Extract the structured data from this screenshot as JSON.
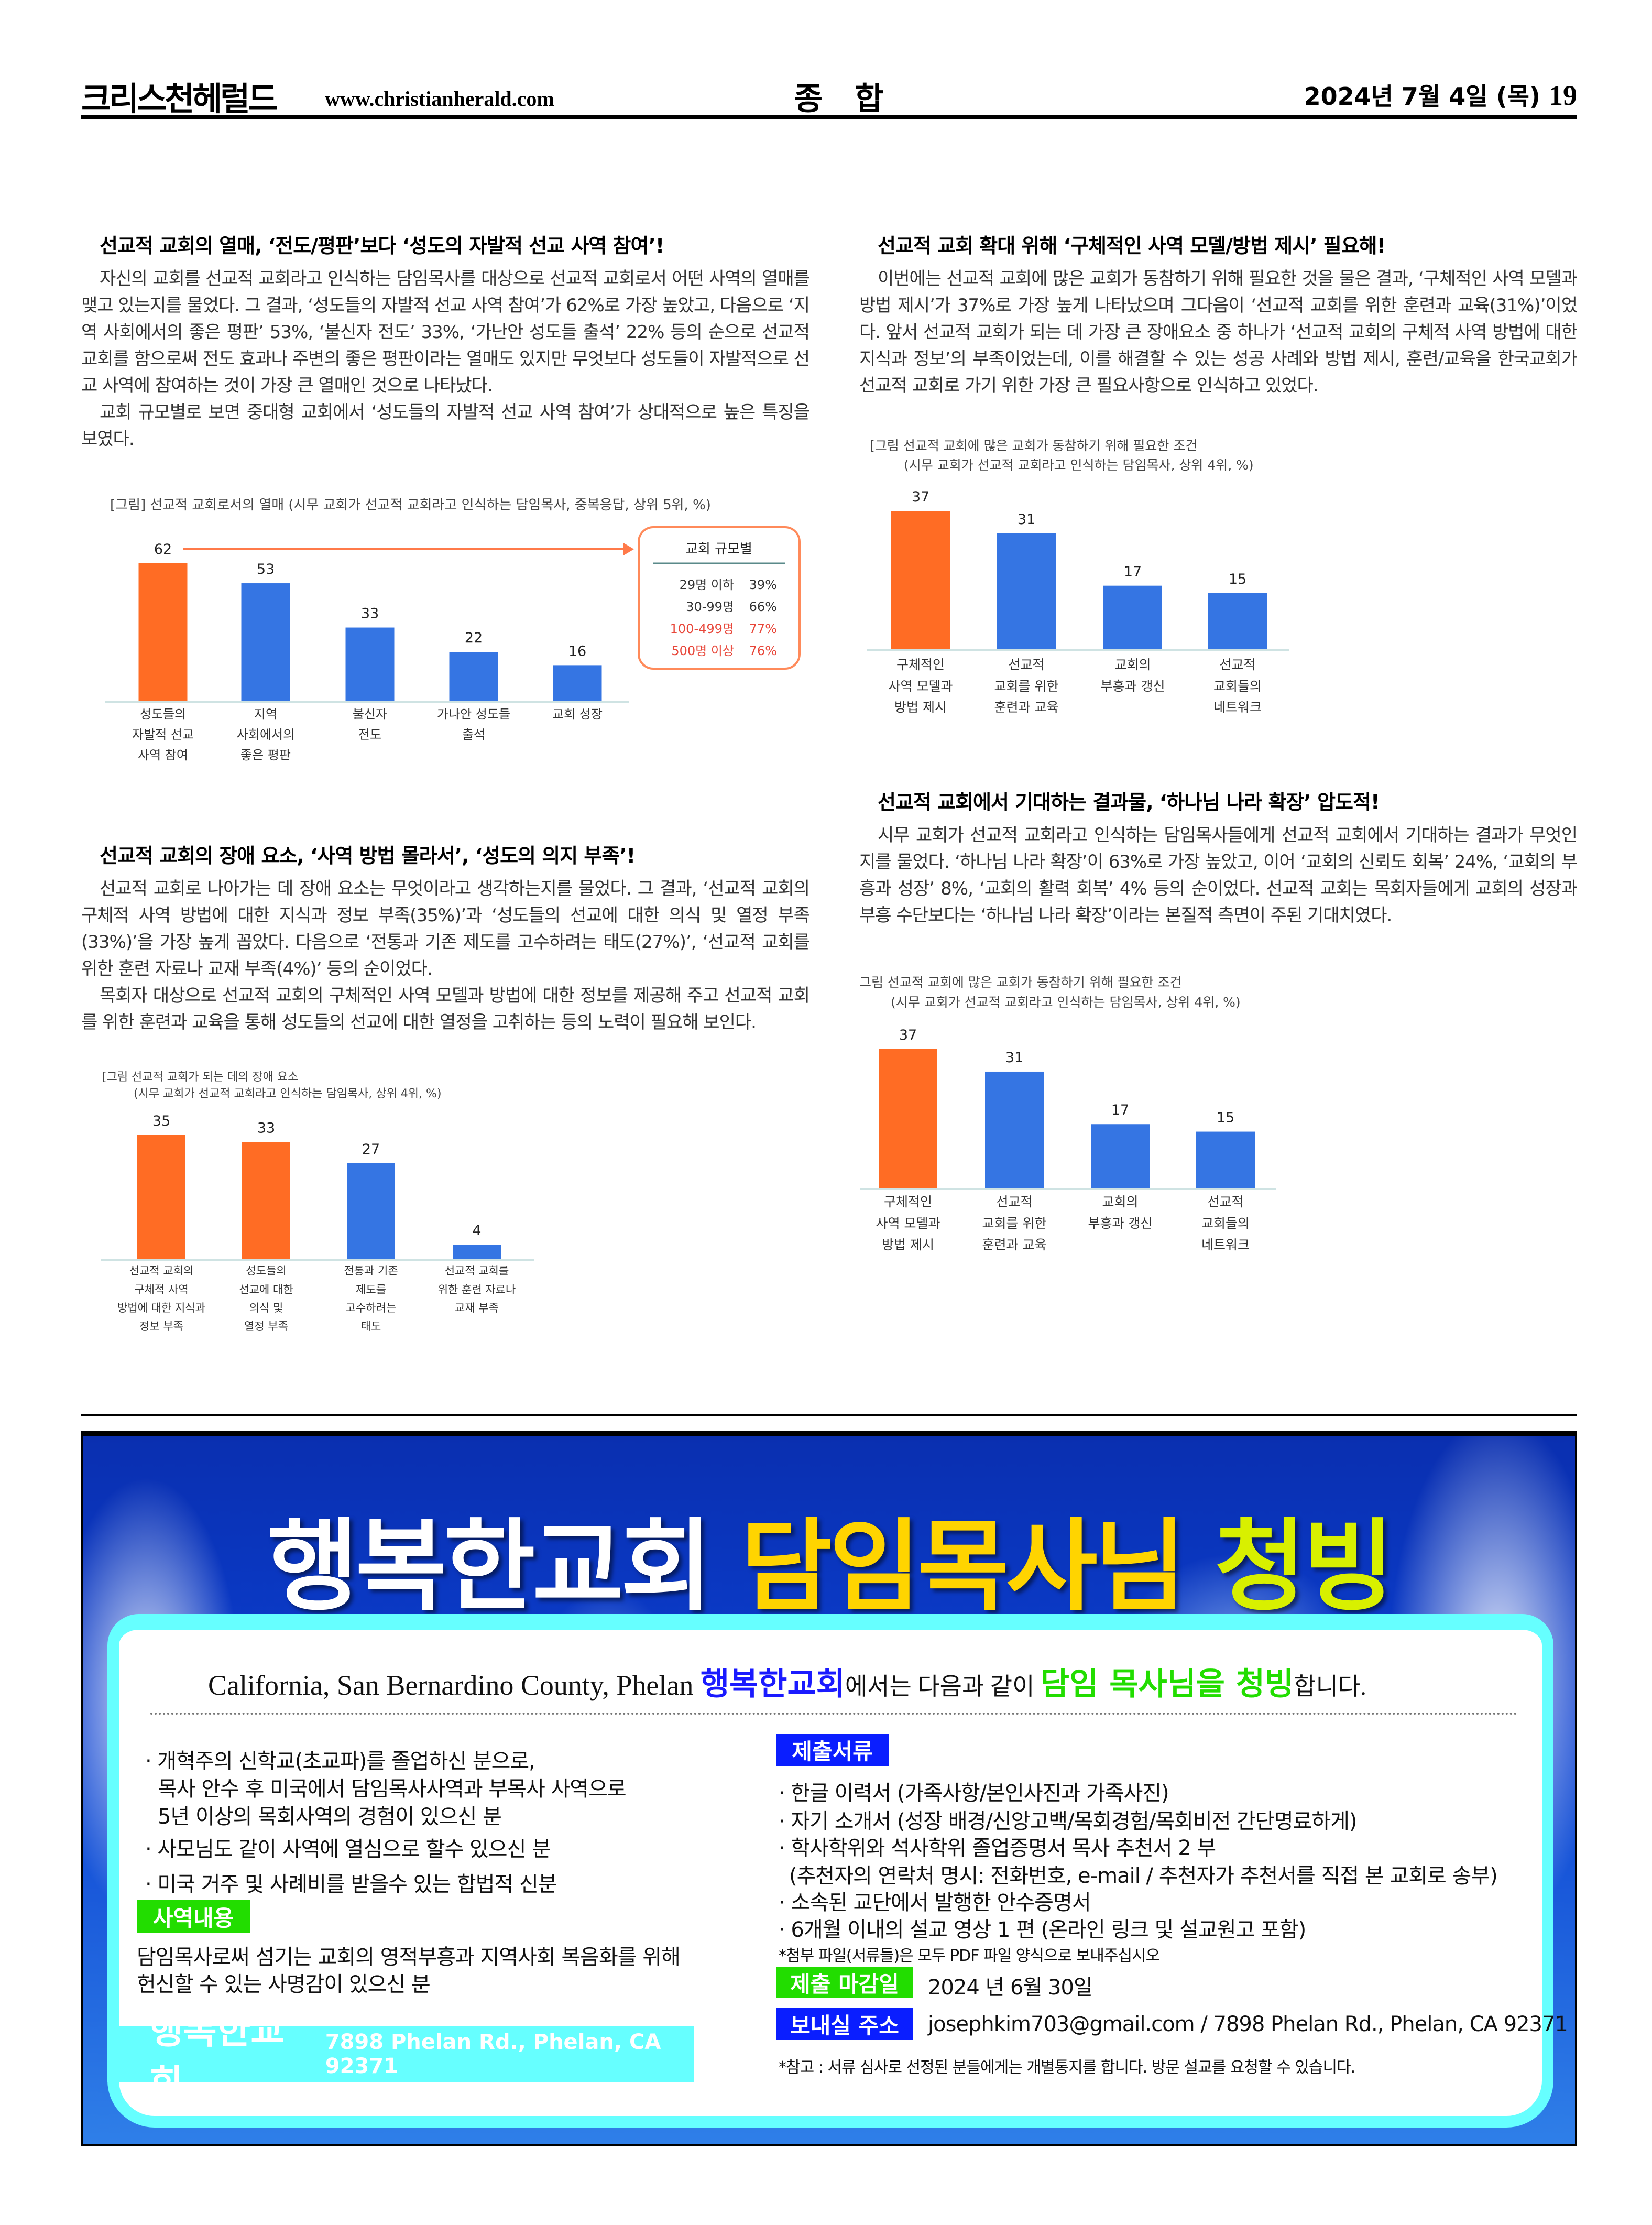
{
  "header": {
    "masthead": "크리스천헤럴드",
    "url": "www.christianherald.com",
    "section": "종 합",
    "date": "2024년 7월 4일 (목)",
    "page_number": "19"
  },
  "articles": [
    {
      "heading": "선교적 교회의 열매, ‘전도/평판’보다 ‘성도의 자발적 선교 사역 참여’!",
      "paragraphs": [
        "자신의 교회를 선교적 교회라고 인식하는 담임목사를 대상으로 선교적 교회로서 어떤 사역의 열매를 맺고 있는지를 물었다. 그 결과, ‘성도들의 자발적 선교 사역 참여’가 62%로 가장 높았고, 다음으로 ‘지역 사회에서의 좋은 평판’ 53%, ‘불신자 전도’ 33%, ‘가난안 성도들 출석’ 22% 등의 순으로 선교적 교회를 함으로써 전도 효과나 주변의 좋은 평판이라는 열매도 있지만 무엇보다 성도들이 자발적으로 선교 사역에 참여하는 것이 가장 큰 열매인 것으로 나타났다.",
        "교회 규모별로 보면 중대형 교회에서 ‘성도들의 자발적 선교 사역 참여’가 상대적으로 높은 특징을 보였다."
      ]
    },
    {
      "heading": "선교적 교회의 장애 요소, ‘사역 방법 몰라서’, ‘성도의 의지 부족’!",
      "paragraphs": [
        "선교적 교회로 나아가는 데 장애 요소는 무엇이라고 생각하는지를 물었다. 그 결과, ‘선교적 교회의 구체적 사역 방법에 대한 지식과 정보 부족(35%)’과 ‘성도들의 선교에 대한 의식 및 열정 부족(33%)’을 가장 높게 꼽았다. 다음으로 ‘전통과 기존 제도를 고수하려는 태도(27%)’, ‘선교적 교회를 위한 훈련 자료나 교재 부족(4%)’ 등의 순이었다.",
        "목회자 대상으로 선교적 교회의 구체적인 사역 모델과 방법에 대한 정보를 제공해 주고 선교적 교회를 위한 훈련과 교육을 통해 성도들의 선교에 대한 열정을 고취하는 등의 노력이 필요해 보인다."
      ]
    },
    {
      "heading": "선교적 교회 확대 위해 ‘구체적인 사역 모델/방법 제시’ 필요해!",
      "paragraphs": [
        "이번에는 선교적 교회에 많은 교회가 동참하기 위해 필요한 것을 물은 결과, ‘구체적인 사역 모델과 방법 제시’가 37%로 가장 높게 나타났으며 그다음이 ‘선교적 교회를 위한 훈련과 교육(31%)’이었다. 앞서 선교적 교회가 되는 데 가장 큰 장애요소 중 하나가 ‘선교적 교회의 구체적 사역 방법에 대한 지식과 정보’의 부족이었는데, 이를 해결할 수 있는 성공 사례와 방법 제시, 훈련/교육을 한국교회가 선교적 교회로 가기 위한 가장 큰 필요사항으로 인식하고 있었다."
      ]
    },
    {
      "heading": "선교적 교회에서 기대하는 결과물, ‘하나님 나라 확장’ 압도적!",
      "paragraphs": [
        "시무 교회가 선교적 교회라고 인식하는 담임목사들에게 선교적 교회에서 기대하는 결과가 무엇인지를 물었다. ‘하나님 나라 확장’이 63%로 가장 높았고, 이어 ‘교회의 신뢰도 회복’ 24%, ‘교회의 부흥과 성장’ 8%, ‘교회의 활력 회복’ 4% 등의 순이었다. 선교적 교회는 목회자들에게 교회의 성장과 부흥 수단보다는 ‘하나님 나라 확장’이라는 본질적 측면이 주된 기대치였다."
      ]
    }
  ],
  "chart_data": [
    {
      "type": "bar",
      "title": [
        "[그림] 선교적 교회로서의 열매 (시무 교회가 선교적 교회라고 인식하는 담임목사, 중복응답, 상위 5위, %)"
      ],
      "categories": [
        [
          "성도들의",
          "자발적 선교",
          "사역 참여"
        ],
        [
          "지역",
          "사회에서의",
          "좋은 평판"
        ],
        [
          "불신자",
          "전도"
        ],
        [
          "가나안 성도들",
          "출석"
        ],
        [
          "교회 성장"
        ]
      ],
      "values": [
        62,
        53,
        33,
        22,
        16
      ],
      "colors": [
        "#ff6c24",
        "#3575e3",
        "#3575e3",
        "#3575e3",
        "#3575e3"
      ],
      "inset": {
        "title": "교회 규모별",
        "rows": [
          {
            "label": "29명 이하",
            "value": "39%",
            "color": "#333333"
          },
          {
            "label": "30-99명",
            "value": "66%",
            "color": "#333333"
          },
          {
            "label": "100-499명",
            "value": "77%",
            "color": "#e8473a"
          },
          {
            "label": "500명 이상",
            "value": "76%",
            "color": "#e8473a"
          }
        ]
      }
    },
    {
      "type": "bar",
      "title": [
        "[그림 선교적 교회에 많은 교회가 동참하기 위해 필요한 조건",
        "(시무 교회가 선교적 교회라고 인식하는 담임목사, 상위 4위, %)"
      ],
      "categories": [
        [
          "구체적인",
          "사역 모델과",
          "방법 제시"
        ],
        [
          "선교적",
          "교회를 위한",
          "훈련과 교육"
        ],
        [
          "교회의",
          "부흥과 갱신"
        ],
        [
          "선교적",
          "교회들의",
          "네트워크"
        ]
      ],
      "values": [
        37,
        31,
        17,
        15
      ],
      "colors": [
        "#ff6c24",
        "#3575e3",
        "#3575e3",
        "#3575e3"
      ]
    },
    {
      "type": "bar",
      "title": [
        "[그림 선교적 교회가 되는 데의 장애 요소",
        "(시무 교회가 선교적 교회라고 인식하는 담임목사, 상위 4위, %)"
      ],
      "categories": [
        [
          "선교적 교회의",
          "구체적 사역",
          "방법에 대한 지식과",
          "정보 부족"
        ],
        [
          "성도들의",
          "선교에 대한",
          "의식 및",
          "열정 부족"
        ],
        [
          "전통과 기존",
          "제도를",
          "고수하려는",
          "태도"
        ],
        [
          "선교적 교회를",
          "위한 훈련 자료나",
          "교재 부족"
        ]
      ],
      "values": [
        35,
        33,
        27,
        4
      ],
      "colors": [
        "#ff6c24",
        "#ff6c24",
        "#3575e3",
        "#3575e3"
      ]
    },
    {
      "type": "bar",
      "title": [
        "그림 선교적 교회에 많은 교회가 동참하기 위해 필요한 조건",
        "(시무 교회가 선교적 교회라고 인식하는 담임목사, 상위 4위, %)"
      ],
      "categories": [
        [
          "구체적인",
          "사역 모델과",
          "방법 제시"
        ],
        [
          "선교적",
          "교회를 위한",
          "훈련과 교육"
        ],
        [
          "교회의",
          "부흥과 갱신"
        ],
        [
          "선교적",
          "교회들의",
          "네트워크"
        ]
      ],
      "values": [
        37,
        31,
        17,
        15
      ],
      "colors": [
        "#ff6c24",
        "#3575e3",
        "#3575e3",
        "#3575e3"
      ]
    }
  ],
  "ad": {
    "title": {
      "part1": "행복한교회",
      "part2": "담임목사님",
      "part3": "청빙",
      "color1": "#ffffff",
      "color2": "#ffd400",
      "color3": "#d8f000"
    },
    "intro": {
      "prefix": "California, San Bernardino County, Phelan ",
      "church": "행복한교회",
      "middle": "에서는 다음과 같이 ",
      "highlight": "담임 목사님을 청빙",
      "suffix": "합니다."
    },
    "qualifications": [
      "· 개혁주의 신학교(초교파)를 졸업하신 분으로,",
      "목사 안수 후 미국에서 담임목사사역과 부목사 사역으로",
      "5년 이상의 목회사역의 경험이 있으신 분",
      "· 사모님도 같이 사역에 열심으로 할수 있으신 분",
      "· 미국 거주 및 사례비를 받을수 있는 합법적 신분"
    ],
    "ministry_label": "사역내용",
    "ministry_lines": [
      "담임목사로써 섬기는 교회의 영적부흥과 지역사회 복음화를 위해",
      "헌신할 수 있는 사명감이 있으신 분"
    ],
    "documents_label": "제출서류",
    "documents": [
      "· 한글 이력서 (가족사항/본인사진과 가족사진)",
      "· 자기 소개서 (성장 배경/신앙고백/목회경험/목회비전 간단명료하게)",
      "· 학사학위와 석사학위 졸업증명서 목사 추천서 2 부",
      "(추천자의 연락처 명시: 전화번호, e-mail / 추천자가 추천서를 직접 본 교회로 송부)",
      "· 소속된 교단에서 발행한 안수증명서",
      "· 6개월 이내의 설교 영상 1 편 (온라인 링크 및 설교원고 포함)"
    ],
    "attachment_note": "*첨부 파일(서류들)은 모두 PDF 파일 양식으로 보내주십시오",
    "deadline_label": "제출 마감일",
    "deadline": "2024 년 6월 30일",
    "address_label": "보내실 주소",
    "address": "josephkim703@gmail.com / 7898 Phelan Rd., Phelan, CA 92371",
    "note": "*참고 : 서류 심사로 선정된 분들에게는 개별통지를 합니다. 방문 설교를 요청할 수 있습니다.",
    "footer_church": "행복한교회",
    "footer_address": "7898 Phelan Rd., Phelan, CA 92371",
    "colors": {
      "blue": "#0a1eff",
      "green": "#22dd00",
      "cyan": "#66ffff"
    }
  }
}
